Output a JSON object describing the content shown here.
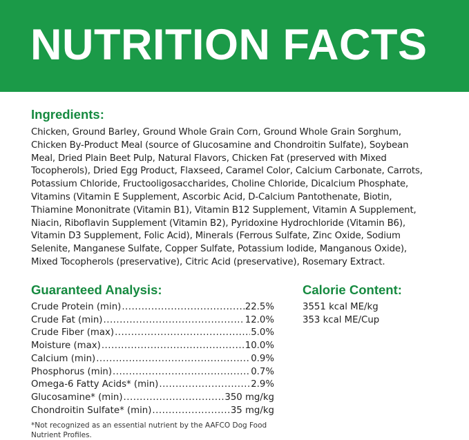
{
  "header": {
    "title": "NUTRITION FACTS",
    "color": "#1b9a48"
  },
  "ingredients": {
    "heading": "Ingredients:",
    "lines": [
      "Chicken, Ground Barley, Ground Whole Grain Corn, Ground Whole Grain Sorghum,",
      "Chicken By-Product Meal (source of Glucosamine and Chondroitin Sulfate), Soybean",
      "Meal, Dried Plain Beet Pulp, Natural Flavors, Chicken Fat (preserved with Mixed",
      "Tocopherols), Dried Egg Product, Flaxseed, Caramel Color, Calcium Carbonate, Carrots,",
      "Potassium Chloride, Fructooligosaccharides, Choline Chloride, Dicalcium Phosphate,",
      "Vitamins (Vitamin E Supplement, Ascorbic Acid, D-Calcium Pantothenate, Biotin,",
      "Thiamine Mononitrate (Vitamin B1), Vitamin B12 Supplement, Vitamin A Supplement,",
      "Niacin, Riboflavin Supplement (Vitamin B2), Pyridoxine Hydrochloride (Vitamin B6),",
      "Vitamin D3 Supplement, Folic Acid), Minerals (Ferrous Sulfate, Zinc Oxide, Sodium",
      "Selenite, Manganese Sulfate, Copper Sulfate, Potassium Iodide, Manganous Oxide),",
      "Mixed Tocopherols (preservative), Citric Acid (preservative), Rosemary Extract."
    ]
  },
  "analysis": {
    "heading": "Guaranteed Analysis:",
    "rows": [
      {
        "label": "Crude Protein (min)",
        "value": "22.5%"
      },
      {
        "label": "Crude Fat (min)",
        "value": "12.0%"
      },
      {
        "label": "Crude Fiber (max)",
        "value": "5.0%"
      },
      {
        "label": "Moisture (max)",
        "value": "10.0%"
      },
      {
        "label": "Calcium (min)",
        "value": "0.9%"
      },
      {
        "label": "Phosphorus (min)",
        "value": "0.7%"
      },
      {
        "label": "Omega-6 Fatty Acids* (min)",
        "value": "2.9%"
      },
      {
        "label": "Glucosamine* (min)",
        "value": "350 mg/kg"
      },
      {
        "label": "Chondroitin Sulfate* (min)",
        "value": "35 mg/kg"
      }
    ],
    "footnote": "*Not recognized as an essential nutrient by the AAFCO Dog Food Nutrient Profiles."
  },
  "calorie": {
    "heading": "Calorie Content:",
    "lines": [
      "3551 kcal ME/kg",
      "353 kcal ME/Cup"
    ]
  }
}
